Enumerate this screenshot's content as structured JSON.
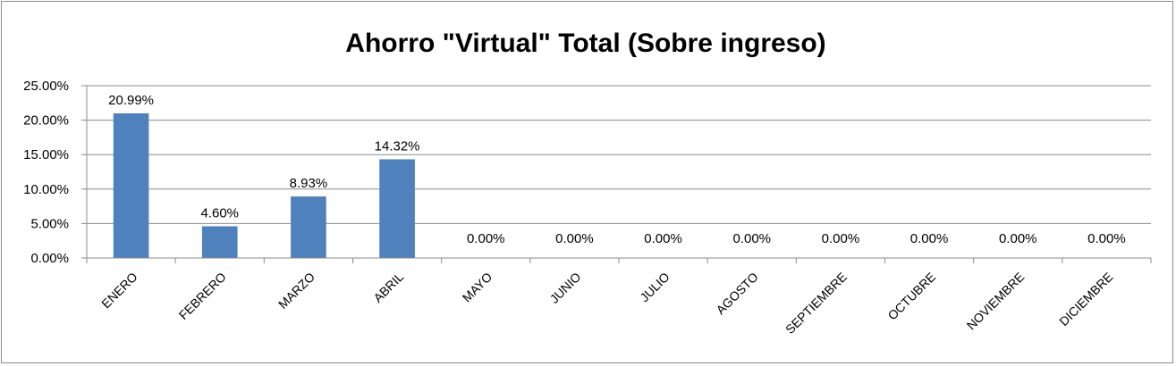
{
  "chart_data": {
    "type": "bar",
    "title": "Ahorro \"Virtual\" Total (Sobre ingreso)",
    "xlabel": "",
    "ylabel": "",
    "categories": [
      "ENERO",
      "FEBRERO",
      "MARZO",
      "ABRIL",
      "MAYO",
      "JUNIO",
      "JULIO",
      "AGOSTO",
      "SEPTIEMBRE",
      "OCTUBRE",
      "NOVIEMBRE",
      "DICIEMBRE"
    ],
    "values": [
      20.99,
      4.6,
      8.93,
      14.32,
      0.0,
      0.0,
      0.0,
      0.0,
      0.0,
      0.0,
      0.0,
      0.0
    ],
    "data_labels": [
      "20.99%",
      "4.60%",
      "8.93%",
      "14.32%",
      "0.00%",
      "0.00%",
      "0.00%",
      "0.00%",
      "0.00%",
      "0.00%",
      "0.00%",
      "0.00%"
    ],
    "yticks": [
      0,
      5,
      10,
      15,
      20,
      25
    ],
    "ytick_labels": [
      "0.00%",
      "5.00%",
      "10.00%",
      "15.00%",
      "20.00%",
      "25.00%"
    ],
    "ylim": [
      0,
      25
    ],
    "grid": true,
    "legend": "none",
    "colors": {
      "bar": "#4f81bd",
      "grid": "#8c8c8c",
      "axis": "#8c8c8c"
    }
  }
}
